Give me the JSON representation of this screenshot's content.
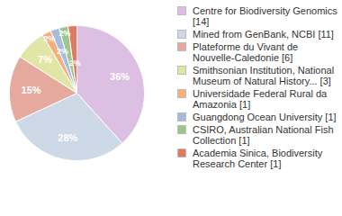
{
  "chart_data": {
    "type": "pie",
    "categories": [
      "Centre for Biodiversity Genomics [14]",
      "Mined from GenBank, NCBI [11]",
      "Plateforme du Vivant de Nouvelle-Caledonie [6]",
      "Smithsonian Institution, National Museum of Natural History... [3]",
      "Universidade Federal Rural da Amazonia [1]",
      "Guangdong Ocean University [1]",
      "CSIRO, Australian National Fish Collection [1]",
      "Academia Sinica, Biodiversity Research Center [1]"
    ],
    "values": [
      36,
      28,
      15,
      7,
      2,
      2,
      2,
      2
    ],
    "value_labels": [
      "36%",
      "28%",
      "15%",
      "7%",
      "2%",
      "2%",
      "2%",
      "2%"
    ],
    "colors": [
      "#dcbfe2",
      "#cdd9e6",
      "#e5a99d",
      "#e1e6a6",
      "#f2b07c",
      "#a6bbde",
      "#9dc68b",
      "#e07b62"
    ],
    "data_labels": true,
    "legend": "right"
  }
}
